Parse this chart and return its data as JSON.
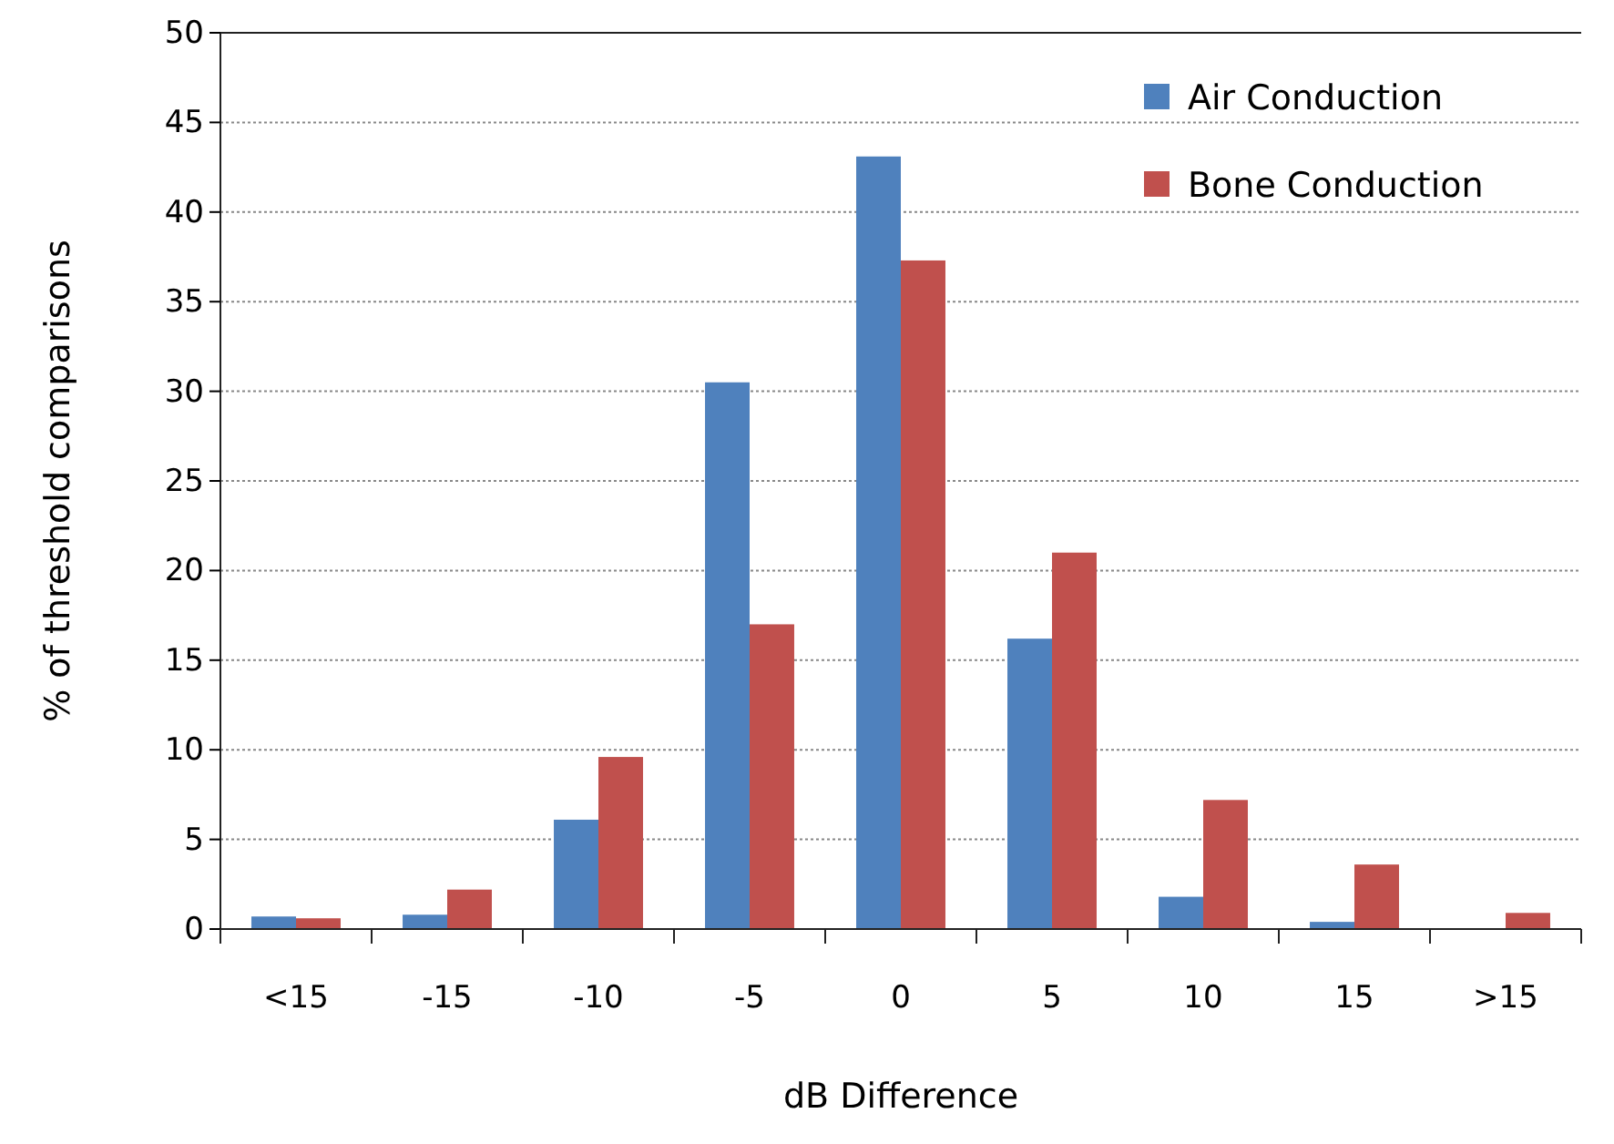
{
  "chart_data": {
    "type": "bar",
    "xlabel": "dB Difference",
    "ylabel": "% of threshold comparisons",
    "categories": [
      "<15",
      "-15",
      "-10",
      "-5",
      "0",
      "5",
      "10",
      "15",
      ">15"
    ],
    "series": [
      {
        "name": "Air Conduction",
        "color": "#4f81bd",
        "values": [
          0.7,
          0.8,
          6.1,
          30.5,
          43.1,
          16.2,
          1.8,
          0.4,
          0
        ]
      },
      {
        "name": "Bone Conduction",
        "color": "#c0504d",
        "values": [
          0.6,
          2.2,
          9.6,
          17.0,
          37.3,
          21.0,
          7.2,
          3.6,
          0.9
        ]
      }
    ],
    "ylim": [
      0,
      50
    ],
    "yticks": [
      0,
      5,
      10,
      15,
      20,
      25,
      30,
      35,
      40,
      45,
      50
    ],
    "grid": "y",
    "legend": "top right"
  }
}
